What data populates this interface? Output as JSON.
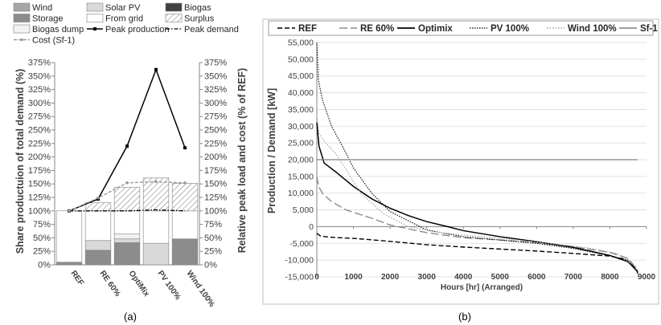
{
  "colors": {
    "wind": "#a6a6a6",
    "solar": "#d9d9d9",
    "biogas": "#404040",
    "storage": "#8c8c8c",
    "from_grid": "#ffffff",
    "surplus": "#bfbfbf",
    "biogas_dump": "#f2f2f2",
    "peak": "#000000",
    "cost": "#9a9a9a",
    "axis": "#868686",
    "grid": "#d9d9d9",
    "flat": "#7f7f7f"
  },
  "chart_data": [
    {
      "type": "bar",
      "stacked": true,
      "panel_label": "(a)",
      "ylabel": "Share productuion of total demand (%)",
      "y2label": "Relative peak load and cost (% of REF)",
      "ylim": [
        0,
        375
      ],
      "y2lim": [
        0,
        375
      ],
      "ytick_step": 25,
      "ytick_suffix": "%",
      "categories": [
        "REF",
        "RE 60%",
        "OptiMix",
        "PV 100%",
        "Wind 100%"
      ],
      "legend": {
        "position": "top",
        "entries": [
          {
            "key": "wind",
            "label": "Wind"
          },
          {
            "key": "solar",
            "label": "Solar PV"
          },
          {
            "key": "biogas",
            "label": "Biogas"
          },
          {
            "key": "storage",
            "label": "Storage"
          },
          {
            "key": "from_grid",
            "label": "From grid"
          },
          {
            "key": "surplus",
            "label": "Surplus"
          },
          {
            "key": "biogas_dump",
            "label": "Biogas dump"
          },
          {
            "key": "peak_production",
            "label": "Peak production"
          },
          {
            "key": "peak_demand",
            "label": "Peak demand"
          },
          {
            "key": "cost",
            "label": "Cost (Sf-1)"
          }
        ]
      },
      "series": [
        {
          "key": "storage",
          "values": [
            3,
            27,
            41,
            0,
            48
          ]
        },
        {
          "key": "wind",
          "values": [
            2,
            0,
            0,
            0,
            0
          ]
        },
        {
          "key": "solar",
          "values": [
            0,
            18,
            7,
            40,
            0
          ]
        },
        {
          "key": "biogas",
          "values": [
            0,
            0,
            0,
            0,
            0
          ]
        },
        {
          "key": "biogas_dump",
          "values": [
            0,
            0,
            9,
            0,
            0
          ]
        },
        {
          "key": "from_grid",
          "values": [
            95,
            55,
            43,
            60,
            52
          ]
        },
        {
          "key": "surplus",
          "values": [
            0,
            15,
            44,
            61,
            51
          ]
        }
      ],
      "lines": [
        {
          "key": "peak_production",
          "values": [
            100,
            122,
            220,
            362,
            217
          ]
        },
        {
          "key": "peak_demand",
          "values": [
            100,
            100,
            100,
            102,
            100
          ]
        },
        {
          "key": "cost",
          "values": [
            100,
            124,
            152,
            154,
            152
          ]
        }
      ]
    },
    {
      "type": "line",
      "panel_label": "(b)",
      "xlabel": "Hours [hr] (Arranged)",
      "ylabel": "Production / Demand [kW]",
      "xlim": [
        0,
        9000
      ],
      "xticks": [
        0,
        1000,
        2000,
        3000,
        4000,
        5000,
        6000,
        7000,
        8000,
        9000
      ],
      "xtick_labels": [
        "0",
        "1000",
        "2000",
        "3000",
        "4000",
        "5000",
        "6000",
        "7000",
        "8000",
        "9000"
      ],
      "ylim": [
        -15000,
        55000
      ],
      "yticks": [
        -15000,
        -10000,
        -5000,
        0,
        5000,
        10000,
        15000,
        20000,
        25000,
        30000,
        35000,
        40000,
        45000,
        50000,
        55000
      ],
      "ytick_labels": [
        "-15,000",
        "-10,000",
        "-5,000",
        "0",
        "5,000",
        "10,000",
        "15,000",
        "20,000",
        "25,000",
        "30,000",
        "35,000",
        "40,000",
        "45,000",
        "50,000",
        "55,000"
      ],
      "grid": true,
      "legend_position": "top",
      "series": [
        {
          "name": "REF",
          "style": "dash",
          "x": [
            0,
            100,
            300,
            600,
            1000,
            2000,
            3000,
            4000,
            5000,
            6000,
            7000,
            8000,
            8400,
            8700,
            8760
          ],
          "y": [
            -2000,
            -2800,
            -3100,
            -3300,
            -3500,
            -4400,
            -5400,
            -6100,
            -6700,
            -7300,
            -8000,
            -8800,
            -9700,
            -12200,
            -14000
          ]
        },
        {
          "name": "RE 60%",
          "style": "longdash",
          "x": [
            0,
            50,
            150,
            400,
            800,
            1500,
            2000,
            3000,
            4000,
            5000,
            6000,
            7000,
            8000,
            8500,
            8760
          ],
          "y": [
            15000,
            12000,
            10000,
            7500,
            5000,
            2500,
            500,
            -1800,
            -3300,
            -4000,
            -4800,
            -6000,
            -7700,
            -9500,
            -13000
          ]
        },
        {
          "name": "Optimix",
          "style": "solid",
          "x": [
            0,
            60,
            200,
            500,
            1000,
            1500,
            2000,
            2500,
            3000,
            3500,
            4000,
            5000,
            6000,
            7000,
            8000,
            8500,
            8760
          ],
          "y": [
            31000,
            24000,
            19000,
            16500,
            12000,
            8300,
            5500,
            3300,
            1500,
            200,
            -1200,
            -3000,
            -4500,
            -6200,
            -8600,
            -10500,
            -13500
          ]
        },
        {
          "name": "PV 100%",
          "style": "dot",
          "x": [
            0,
            40,
            150,
            400,
            700,
            1000,
            1500,
            2000,
            3000,
            4000,
            5000,
            6000,
            7000,
            8000,
            8500,
            8760
          ],
          "y": [
            55000,
            44000,
            38000,
            30000,
            24000,
            17500,
            10000,
            4500,
            -1000,
            -3000,
            -4000,
            -5000,
            -6500,
            -8700,
            -10000,
            -13500
          ]
        },
        {
          "name": "Wind 100%",
          "style": "lightdot",
          "x": [
            0,
            60,
            200,
            500,
            800,
            1200,
            1800,
            2500,
            3500,
            4500,
            5500,
            6500,
            7500,
            8200,
            8760
          ],
          "y": [
            33000,
            28000,
            25500,
            22000,
            17000,
            10000,
            4000,
            0,
            -2000,
            -3000,
            -4000,
            -5200,
            -6500,
            -8000,
            -12500
          ]
        },
        {
          "name": "Sf-1",
          "style": "flat",
          "x": [
            0,
            8760
          ],
          "y": [
            20000,
            20000
          ]
        }
      ]
    }
  ]
}
